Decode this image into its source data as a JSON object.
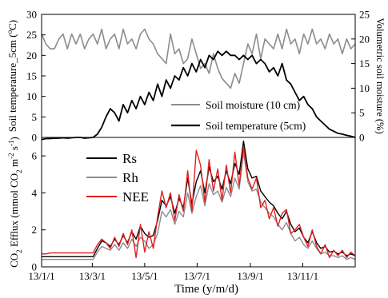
{
  "chart_data": [
    {
      "type": "line",
      "panel": "top",
      "xlabel": "",
      "ylabel_left": "Soil temperature_5cm (°C)",
      "ylabel_left_parts": [
        "Soil temperature_5cm (",
        "o",
        "C)"
      ],
      "ylabel_right": "Volumetric soil moisture (%)",
      "ylim_left": [
        0,
        30
      ],
      "ylim_right": [
        0,
        25
      ],
      "yticks_left": [
        "0",
        "5",
        "10",
        "15",
        "20",
        "25",
        "30"
      ],
      "yticks_right": [
        "0",
        "5",
        "10",
        "15",
        "20",
        "25"
      ],
      "legend_placement": "lower-right",
      "series": [
        {
          "name": "Soil moisture (10 cm)",
          "axis": "right",
          "color": "#8c8c8c",
          "x": [
            0,
            5,
            10,
            15,
            20,
            25,
            30,
            35,
            40,
            45,
            50,
            55,
            60,
            65,
            70,
            75,
            80,
            85,
            90,
            95,
            100,
            105,
            110,
            115,
            120,
            125,
            130,
            135,
            140,
            145,
            150,
            155,
            160,
            165,
            170,
            175,
            180,
            185,
            190,
            195,
            200,
            205,
            210,
            215,
            220,
            225,
            230,
            235,
            240,
            245,
            250,
            255,
            260,
            265,
            270,
            275,
            280,
            285,
            290,
            295,
            300,
            305,
            310,
            315,
            320,
            325,
            330,
            335,
            340,
            345,
            350,
            355,
            360,
            365
          ],
          "y": [
            21,
            19,
            18,
            18,
            20,
            21,
            18,
            21,
            19,
            21,
            18,
            20,
            21,
            19,
            22,
            18,
            20,
            21,
            18,
            22,
            19,
            20,
            18,
            21,
            22,
            20,
            19,
            17,
            16,
            15,
            21,
            17,
            18,
            15,
            16,
            20,
            17,
            14,
            15,
            13,
            17,
            14,
            12,
            11,
            10,
            13,
            11,
            15,
            19,
            17,
            21,
            16,
            20,
            19,
            18,
            21,
            18,
            22,
            19,
            20,
            17,
            21,
            19,
            22,
            19,
            20,
            18,
            21,
            19,
            20,
            17,
            20,
            18,
            19
          ]
        },
        {
          "name": "Soil temperature (5cm)",
          "axis": "left",
          "color": "#000000",
          "x": [
            0,
            5,
            10,
            15,
            20,
            25,
            30,
            35,
            40,
            45,
            50,
            55,
            60,
            65,
            70,
            75,
            80,
            85,
            90,
            95,
            100,
            105,
            110,
            115,
            120,
            125,
            130,
            135,
            140,
            145,
            150,
            155,
            160,
            165,
            170,
            175,
            180,
            185,
            190,
            195,
            200,
            205,
            210,
            215,
            220,
            225,
            230,
            235,
            240,
            245,
            250,
            255,
            260,
            265,
            270,
            275,
            280,
            285,
            290,
            295,
            300,
            305,
            310,
            315,
            320,
            325,
            330,
            335,
            340,
            345,
            350,
            355,
            360,
            365
          ],
          "y": [
            -0.5,
            -0.3,
            -0.3,
            -0.2,
            -0.2,
            -0.1,
            -0.2,
            -0.1,
            0,
            0,
            -0.2,
            -0.1,
            0,
            0.8,
            2.5,
            5,
            7,
            6,
            4,
            8,
            6,
            9,
            7,
            10,
            8,
            11,
            9,
            13,
            10,
            14,
            12,
            15,
            14,
            17,
            15,
            18,
            16,
            19,
            17,
            20,
            19,
            21,
            20,
            21,
            20,
            20,
            19,
            20,
            19,
            20,
            18,
            19,
            18,
            16,
            17,
            15,
            18,
            14,
            13,
            11,
            9,
            10,
            8,
            7,
            5,
            4,
            3,
            2,
            1.5,
            1,
            0.8,
            0.5,
            0.3,
            0
          ]
        }
      ]
    },
    {
      "type": "line",
      "panel": "bottom",
      "xlabel": "Time (y/m/d)",
      "ylabel_parts": [
        "CO",
        "2",
        " Efflux (mmol CO",
        "2",
        " m",
        "-2",
        " s",
        "-1",
        ")"
      ],
      "ylim": [
        0,
        7
      ],
      "yticks": [
        "0",
        "2",
        "4",
        "6"
      ],
      "categories": [
        "13/1/1",
        "13/3/1",
        "13/5/1",
        "13/7/1",
        "13/9/1",
        "13/11/1"
      ],
      "category_days": [
        0,
        59,
        120,
        181,
        243,
        304
      ],
      "xlim_days": [
        0,
        365
      ],
      "legend_placement": "upper-left",
      "series": [
        {
          "name": "Rs",
          "color": "#000000",
          "x": [
            0,
            5,
            10,
            15,
            20,
            25,
            30,
            35,
            40,
            45,
            50,
            55,
            60,
            65,
            70,
            75,
            80,
            85,
            90,
            95,
            100,
            105,
            110,
            115,
            120,
            125,
            130,
            135,
            140,
            145,
            150,
            155,
            160,
            165,
            170,
            175,
            180,
            185,
            190,
            195,
            200,
            205,
            210,
            215,
            220,
            225,
            230,
            235,
            240,
            245,
            250,
            255,
            260,
            265,
            270,
            275,
            280,
            285,
            290,
            295,
            300,
            305,
            310,
            315,
            320,
            325,
            330,
            335,
            340,
            345,
            350,
            355,
            360,
            365
          ],
          "y": [
            0.55,
            0.55,
            0.55,
            0.55,
            0.55,
            0.55,
            0.55,
            0.55,
            0.55,
            0.55,
            0.55,
            0.55,
            0.55,
            1.0,
            1.4,
            1.3,
            1.1,
            1.5,
            1.2,
            1.7,
            1.3,
            1.9,
            1.5,
            2.2,
            1.8,
            1.6,
            1.7,
            2.5,
            3.6,
            3.3,
            3.8,
            2.9,
            3.7,
            3.2,
            4.8,
            3.4,
            4.6,
            5.2,
            4.0,
            5.4,
            4.6,
            4.9,
            4.2,
            5.2,
            4.5,
            5.6,
            5.0,
            6.8,
            5.3,
            4.8,
            4.9,
            4.1,
            3.8,
            3.5,
            3.3,
            2.9,
            2.6,
            3.0,
            2.3,
            1.9,
            2.1,
            1.6,
            1.3,
            1.9,
            1.3,
            1.0,
            1.1,
            0.8,
            0.85,
            0.7,
            0.8,
            0.6,
            0.7,
            0.6
          ]
        },
        {
          "name": "Rh",
          "color": "#8c8c8c",
          "x": [
            0,
            5,
            10,
            15,
            20,
            25,
            30,
            35,
            40,
            45,
            50,
            55,
            60,
            65,
            70,
            75,
            80,
            85,
            90,
            95,
            100,
            105,
            110,
            115,
            120,
            125,
            130,
            135,
            140,
            145,
            150,
            155,
            160,
            165,
            170,
            175,
            180,
            185,
            190,
            195,
            200,
            205,
            210,
            215,
            220,
            225,
            230,
            235,
            240,
            245,
            250,
            255,
            260,
            265,
            270,
            275,
            280,
            285,
            290,
            295,
            300,
            305,
            310,
            315,
            320,
            325,
            330,
            335,
            340,
            345,
            350,
            355,
            360,
            365
          ],
          "y": [
            0.4,
            0.4,
            0.4,
            0.4,
            0.4,
            0.4,
            0.4,
            0.4,
            0.4,
            0.4,
            0.4,
            0.4,
            0.4,
            0.8,
            1.1,
            1.0,
            0.9,
            1.2,
            0.9,
            1.3,
            1.0,
            1.5,
            1.1,
            1.6,
            1.4,
            1.0,
            1.2,
            1.8,
            3.0,
            2.7,
            3.1,
            2.3,
            3.0,
            2.7,
            4.0,
            2.9,
            3.8,
            4.4,
            3.3,
            4.5,
            3.9,
            4.1,
            3.5,
            4.3,
            3.8,
            4.8,
            4.2,
            6.2,
            4.6,
            4.1,
            4.2,
            3.5,
            3.2,
            2.9,
            2.7,
            2.3,
            2.0,
            2.4,
            1.8,
            1.4,
            1.6,
            1.2,
            1.0,
            1.4,
            1.0,
            0.7,
            0.8,
            0.6,
            0.6,
            0.5,
            0.6,
            0.4,
            0.5,
            0.4
          ]
        },
        {
          "name": "NEE",
          "color": "#e02020",
          "x": [
            0,
            5,
            10,
            15,
            20,
            25,
            30,
            35,
            40,
            45,
            50,
            55,
            60,
            65,
            70,
            75,
            80,
            85,
            90,
            95,
            100,
            105,
            110,
            115,
            120,
            125,
            130,
            135,
            140,
            145,
            150,
            155,
            160,
            165,
            170,
            175,
            180,
            185,
            190,
            195,
            200,
            205,
            210,
            215,
            220,
            225,
            230,
            235,
            240,
            245,
            250,
            255,
            260,
            265,
            270,
            275,
            280,
            285,
            290,
            295,
            300,
            305,
            310,
            315,
            320,
            325,
            330,
            335,
            340,
            345,
            350,
            355,
            360,
            365
          ],
          "y": [
            0.7,
            0.7,
            0.75,
            0.75,
            0.75,
            0.75,
            0.75,
            0.75,
            0.75,
            0.75,
            0.75,
            0.75,
            0.75,
            1.2,
            1.5,
            1.3,
            1.0,
            1.6,
            1.1,
            1.8,
            1.2,
            2.0,
            0.5,
            2.3,
            0.8,
            1.9,
            1.0,
            2.7,
            4.1,
            3.2,
            4.0,
            2.5,
            3.9,
            3.0,
            5.2,
            3.0,
            6.3,
            5.5,
            3.5,
            5.8,
            4.1,
            5.3,
            3.6,
            5.5,
            4.0,
            6.2,
            4.4,
            6.5,
            4.8,
            4.2,
            4.8,
            3.2,
            3.6,
            2.6,
            3.2,
            2.2,
            2.9,
            3.1,
            1.8,
            2.0,
            2.3,
            1.6,
            1.1,
            2.0,
            1.1,
            0.7,
            1.2,
            0.5,
            0.9,
            0.6,
            0.9,
            0.5,
            0.8,
            0.6
          ]
        }
      ]
    }
  ]
}
